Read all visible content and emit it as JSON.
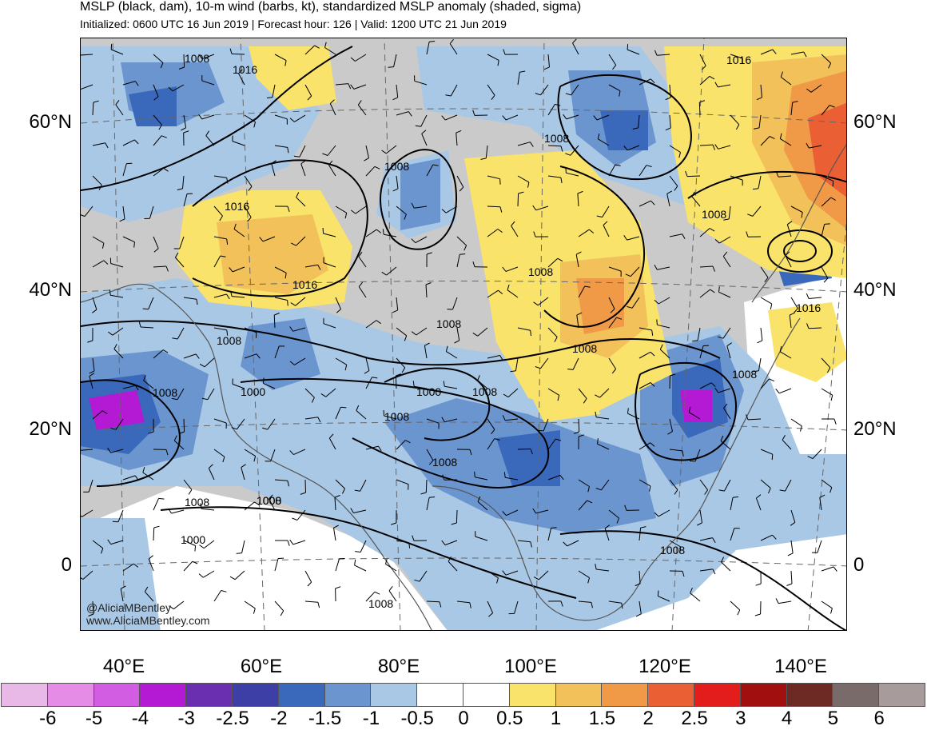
{
  "header": {
    "title": "MSLP (black, dam), 10-m wind (barbs, kt), standardized MSLP anomaly (shaded, sigma)",
    "subtitle": "Initialized: 0600 UTC 16 Jun 2019 | Forecast hour: 126 | Valid: 1200 UTC 21 Jun 2019"
  },
  "map": {
    "lat_labels": [
      "60°N",
      "40°N",
      "20°N",
      "0"
    ],
    "lon_labels": [
      "40°E",
      "60°E",
      "80°E",
      "100°E",
      "120°E",
      "140°E"
    ],
    "isobar_labels": [
      "1008",
      "1016",
      "1016",
      "1016",
      "1008",
      "1008",
      "1008",
      "1016",
      "1008",
      "1008",
      "1016",
      "1008",
      "1008",
      "1008",
      "1008",
      "1008",
      "1000",
      "1000",
      "1008",
      "1008",
      "1008",
      "1000",
      "1000",
      "1008",
      "1008",
      "1008"
    ],
    "credit": [
      "@AliciaMBentley",
      "www.AliciaMBentley.com"
    ]
  },
  "colorbar": {
    "colors": [
      "#e8b9e6",
      "#e58ce6",
      "#d35de2",
      "#b41ad3",
      "#6a2fb0",
      "#3d3fa6",
      "#3a68bb",
      "#6b95cf",
      "#a8c8e6",
      "#ffffff",
      "#ffffff",
      "#f9e36b",
      "#f2c15a",
      "#f09a48",
      "#eb5f34",
      "#e31c1c",
      "#a20f0f",
      "#6d2a24",
      "#7a6b6b",
      "#a89b9b"
    ],
    "labels": [
      "-6",
      "-5",
      "-4",
      "-3",
      "-2.5",
      "-2",
      "-1.5",
      "-1",
      "-0.5",
      "0",
      "0.5",
      "1",
      "1.5",
      "2",
      "2.5",
      "3",
      "4",
      "5",
      "6"
    ]
  }
}
